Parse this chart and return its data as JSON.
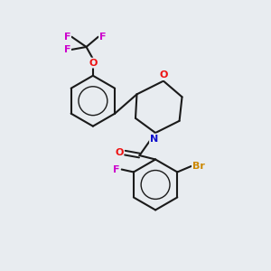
{
  "background_color": "#e8ecf0",
  "bond_color": "#1a1a1a",
  "atom_colors": {
    "O": "#ee1111",
    "N": "#1111cc",
    "F": "#cc00cc",
    "Br": "#cc8800",
    "C": "#1a1a1a"
  },
  "figsize": [
    3.0,
    3.0
  ],
  "dpi": 100
}
